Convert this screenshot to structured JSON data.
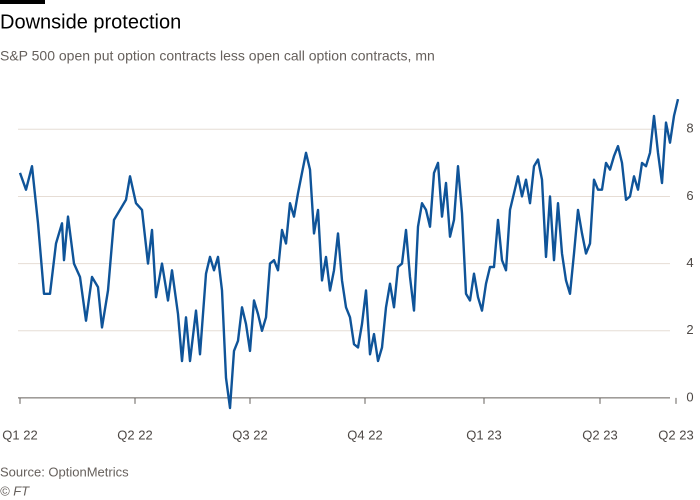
{
  "chart_data": {
    "type": "line",
    "title": "Downside protection",
    "subtitle": "S&P 500 open put option contracts less open call option contracts, mn",
    "source": "Source: OptionMetrics",
    "credit": "© FT",
    "x": [
      0,
      6,
      12,
      18,
      24,
      30,
      36,
      42,
      44,
      48,
      54,
      60,
      66,
      72,
      78,
      82,
      88,
      94,
      100,
      106,
      110,
      116,
      122,
      128,
      132,
      136,
      142,
      148,
      152,
      158,
      162,
      166,
      170,
      176,
      180,
      186,
      190,
      194,
      198,
      202,
      206,
      210,
      214,
      218,
      222,
      226,
      230,
      234,
      238,
      242,
      246,
      250,
      254,
      258,
      262,
      266,
      270,
      274,
      278,
      282,
      286,
      290,
      294,
      298,
      302,
      306,
      310,
      314,
      318,
      322,
      326,
      330,
      334,
      338,
      342,
      346,
      350,
      354,
      358,
      362,
      366,
      370,
      374,
      378,
      382,
      386,
      390,
      394,
      398,
      402,
      406,
      410,
      414,
      418,
      422,
      426,
      430,
      434,
      438,
      442,
      446,
      450,
      454,
      458,
      462,
      466,
      470,
      474,
      478,
      482,
      486,
      490,
      494,
      498,
      502,
      506,
      510,
      514,
      518,
      522,
      526,
      530,
      534,
      538,
      542,
      546,
      550,
      554,
      558,
      562,
      566,
      570,
      574,
      578,
      582,
      586,
      590,
      594,
      598,
      602,
      606,
      610,
      614,
      618,
      622,
      626,
      630,
      634,
      638,
      642,
      646,
      650,
      654,
      658
    ],
    "series": [
      {
        "color": "#0f5499",
        "values": [
          6.7,
          6.2,
          6.9,
          5.2,
          3.1,
          3.1,
          4.6,
          5.2,
          4.1,
          5.4,
          4.0,
          3.6,
          2.3,
          3.6,
          3.3,
          2.1,
          3.2,
          5.3,
          5.6,
          5.9,
          6.6,
          5.8,
          5.6,
          4.0,
          5.0,
          3.0,
          4.0,
          2.9,
          3.8,
          2.5,
          1.1,
          2.4,
          1.1,
          2.6,
          1.3,
          3.7,
          4.2,
          3.8,
          4.2,
          3.2,
          0.6,
          -0.3,
          1.4,
          1.7,
          2.7,
          2.2,
          1.4,
          2.9,
          2.5,
          2.0,
          2.4,
          4.0,
          4.1,
          3.8,
          5.0,
          4.6,
          5.8,
          5.4,
          6.1,
          6.7,
          7.3,
          6.8,
          4.9,
          5.6,
          3.5,
          4.2,
          3.2,
          3.8,
          4.9,
          3.5,
          2.7,
          2.4,
          1.6,
          1.5,
          2.2,
          3.2,
          1.3,
          1.9,
          1.1,
          1.5,
          2.7,
          3.4,
          2.7,
          3.9,
          4.0,
          5.0,
          3.6,
          2.6,
          5.1,
          5.8,
          5.6,
          5.1,
          6.7,
          7.0,
          5.4,
          6.4,
          4.8,
          5.3,
          6.9,
          5.5,
          3.1,
          2.9,
          3.7,
          3.0,
          2.6,
          3.4,
          3.9,
          3.9,
          5.3,
          4.1,
          3.8,
          5.6,
          6.1,
          6.6,
          6.0,
          6.5,
          5.8,
          6.9,
          7.1,
          6.5,
          4.2,
          6.0,
          4.1,
          5.8,
          4.3,
          3.5,
          3.1,
          4.3,
          5.6,
          4.9,
          4.3,
          4.6,
          6.5,
          6.2,
          6.2,
          7.0,
          6.8,
          7.2,
          7.5,
          7.0,
          5.9,
          6.0,
          6.6,
          6.2,
          7.0,
          6.9,
          7.3,
          8.4,
          7.3,
          6.4,
          8.2,
          7.6,
          8.4,
          8.9
        ]
      }
    ],
    "xlim": [
      0,
      658
    ],
    "xticks": [
      {
        "value": 0,
        "label": "Q1 22"
      },
      {
        "value": 115,
        "label": "Q2 22"
      },
      {
        "value": 230,
        "label": "Q3 22"
      },
      {
        "value": 345,
        "label": "Q4 22"
      },
      {
        "value": 464,
        "label": "Q1 23"
      },
      {
        "value": 580,
        "label": "Q2 23"
      },
      {
        "value": 656,
        "label": "Q2 23"
      }
    ],
    "ylim": [
      -0.36,
      9.17
    ],
    "yticks": [
      0,
      2,
      4,
      6,
      8
    ],
    "grid": true
  }
}
